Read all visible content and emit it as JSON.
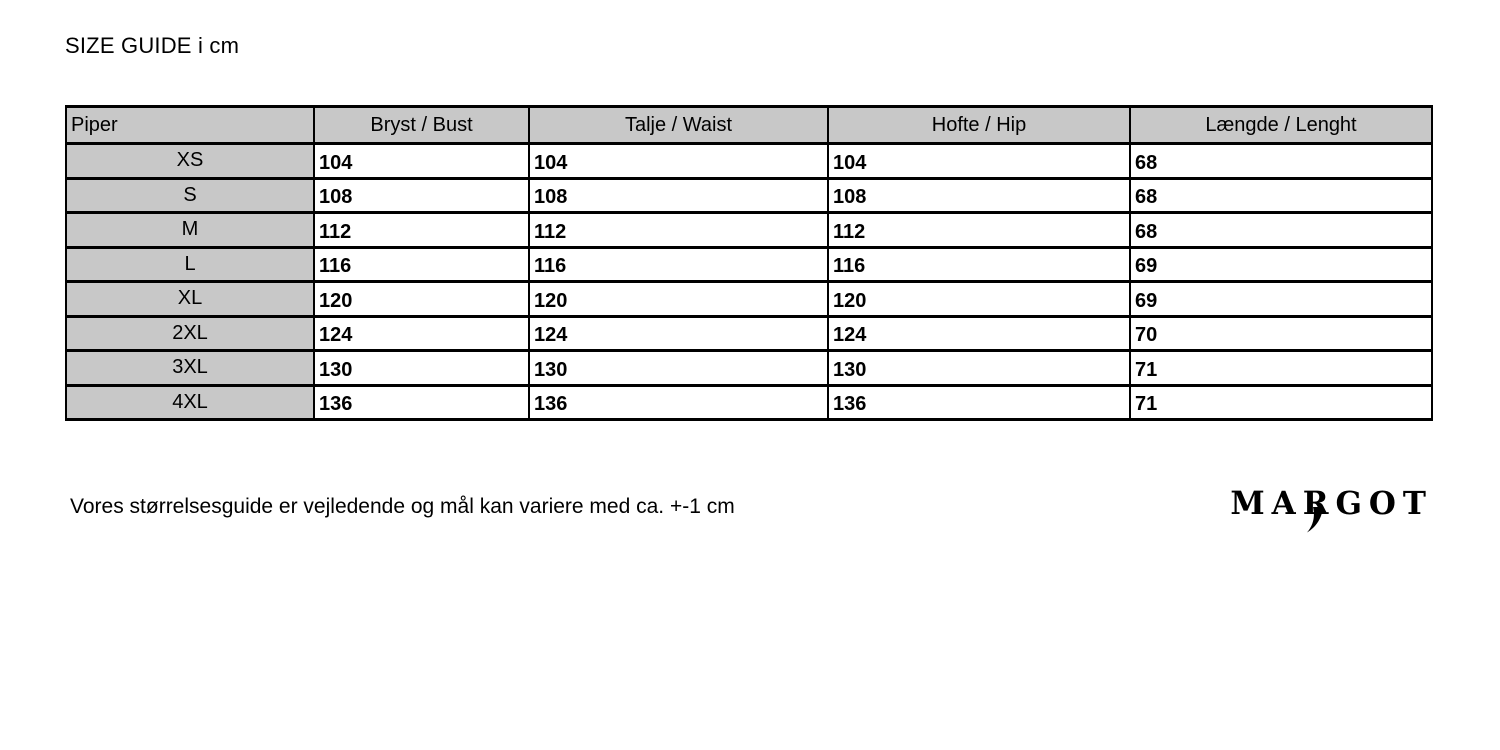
{
  "page": {
    "title": "SIZE GUIDE i cm",
    "footnote": "Vores størrelsesguide er vejledende og mål kan variere med ca. +-1 cm",
    "logo": {
      "pre": "MA",
      "r": "R",
      "post": "GOT",
      "full": "MARGOT"
    }
  },
  "colors": {
    "header_bg": "#c8c8c8",
    "border": "#000000",
    "text": "#000000",
    "page_bg": "#ffffff"
  },
  "table": {
    "product": "Piper",
    "columns": [
      "Bryst / Bust",
      "Talje / Waist",
      "Hofte / Hip",
      "Længde / Lenght"
    ],
    "rows": [
      {
        "size": "XS",
        "values": [
          "104",
          "104",
          "104",
          "68"
        ]
      },
      {
        "size": "S",
        "values": [
          "108",
          "108",
          "108",
          "68"
        ]
      },
      {
        "size": "M",
        "values": [
          "112",
          "112",
          "112",
          "68"
        ]
      },
      {
        "size": "L",
        "values": [
          "116",
          "116",
          "116",
          "69"
        ]
      },
      {
        "size": "XL",
        "values": [
          "120",
          "120",
          "120",
          "69"
        ]
      },
      {
        "size": "2XL",
        "values": [
          "124",
          "124",
          "124",
          "70"
        ]
      },
      {
        "size": "3XL",
        "values": [
          "130",
          "130",
          "130",
          "71"
        ]
      },
      {
        "size": "4XL",
        "values": [
          "136",
          "136",
          "136",
          "71"
        ]
      }
    ]
  }
}
